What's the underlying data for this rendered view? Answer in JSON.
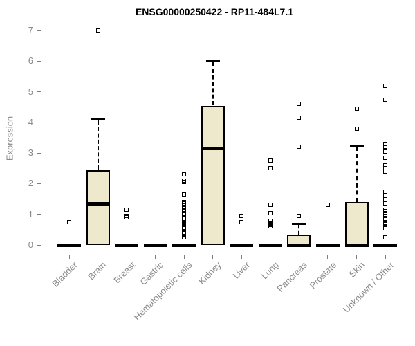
{
  "title": "ENSG00000250422 - RP11-484L7.1",
  "colors": {
    "box_fill": "#EEE8CD",
    "box_stroke": "#000000",
    "median": "#000000",
    "whisker": "#000000",
    "outlier": "#000000",
    "axis": "#7f7f7f",
    "tick_label": "#8a8a8a",
    "title": "#000000",
    "background": "#ffffff"
  },
  "chart_data": {
    "type": "boxplot",
    "title": "ENSG00000250422 - RP11-484L7.1",
    "xlabel": "",
    "ylabel": "Expression",
    "ylim": [
      0,
      7
    ],
    "yticks": [
      0,
      1,
      2,
      3,
      4,
      5,
      6,
      7
    ],
    "grid": false,
    "legend": false,
    "categories": [
      "Bladder",
      "Brain",
      "Breast",
      "Gastric",
      "Hematopoietic cells",
      "Kidney",
      "Liver",
      "Lung",
      "Pancreas",
      "Prostate",
      "Skin",
      "Unknown / Other"
    ],
    "boxes": [
      {
        "category": "Bladder",
        "q1": 0,
        "median": 0,
        "q3": 0,
        "whisker_low": 0,
        "whisker_high": 0,
        "outliers": [
          0.75
        ]
      },
      {
        "category": "Brain",
        "q1": 0,
        "median": 1.35,
        "q3": 2.45,
        "whisker_low": 0,
        "whisker_high": 4.1,
        "outliers": [
          7.0
        ]
      },
      {
        "category": "Breast",
        "q1": 0,
        "median": 0,
        "q3": 0,
        "whisker_low": 0,
        "whisker_high": 0,
        "outliers": [
          1.15,
          0.95,
          0.9
        ]
      },
      {
        "category": "Gastric",
        "q1": 0,
        "median": 0,
        "q3": 0,
        "whisker_low": 0,
        "whisker_high": 0,
        "outliers": []
      },
      {
        "category": "Hematopoietic cells",
        "q1": 0,
        "median": 0,
        "q3": 0,
        "whisker_low": 0,
        "whisker_high": 0,
        "outliers": [
          2.3,
          2.1,
          2.05,
          1.65,
          1.4,
          1.35,
          1.3,
          1.25,
          1.2,
          1.15,
          1.1,
          1.05,
          1.0,
          0.9,
          0.85,
          0.8,
          0.75,
          0.7,
          0.65,
          0.6,
          0.55,
          0.5,
          0.45,
          0.4,
          0.35,
          0.25
        ]
      },
      {
        "category": "Kidney",
        "q1": 0,
        "median": 3.15,
        "q3": 4.55,
        "whisker_low": 0,
        "whisker_high": 6.0,
        "outliers": []
      },
      {
        "category": "Liver",
        "q1": 0,
        "median": 0,
        "q3": 0,
        "whisker_low": 0,
        "whisker_high": 0,
        "outliers": [
          0.95,
          0.75
        ]
      },
      {
        "category": "Lung",
        "q1": 0,
        "median": 0,
        "q3": 0,
        "whisker_low": 0,
        "whisker_high": 0,
        "outliers": [
          2.75,
          2.5,
          1.3,
          1.05,
          0.8,
          0.7,
          0.65,
          0.6
        ]
      },
      {
        "category": "Pancreas",
        "q1": 0,
        "median": 0,
        "q3": 0.35,
        "whisker_low": 0,
        "whisker_high": 0.7,
        "outliers": [
          4.6,
          4.15,
          3.2,
          0.95
        ]
      },
      {
        "category": "Prostate",
        "q1": 0,
        "median": 0,
        "q3": 0,
        "whisker_low": 0,
        "whisker_high": 0,
        "outliers": [
          1.3
        ]
      },
      {
        "category": "Skin",
        "q1": 0,
        "median": 0,
        "q3": 1.4,
        "whisker_low": 0,
        "whisker_high": 3.25,
        "outliers": [
          4.45,
          3.8
        ]
      },
      {
        "category": "Unknown / Other",
        "q1": 0,
        "median": 0,
        "q3": 0,
        "whisker_low": 0,
        "whisker_high": 0,
        "outliers": [
          5.2,
          4.75,
          3.3,
          3.2,
          3.05,
          2.85,
          2.6,
          2.5,
          2.4,
          1.75,
          1.6,
          1.5,
          1.35,
          1.15,
          1.1,
          1.0,
          0.95,
          0.85,
          0.8,
          0.7,
          0.6,
          0.55,
          0.25
        ]
      }
    ]
  }
}
